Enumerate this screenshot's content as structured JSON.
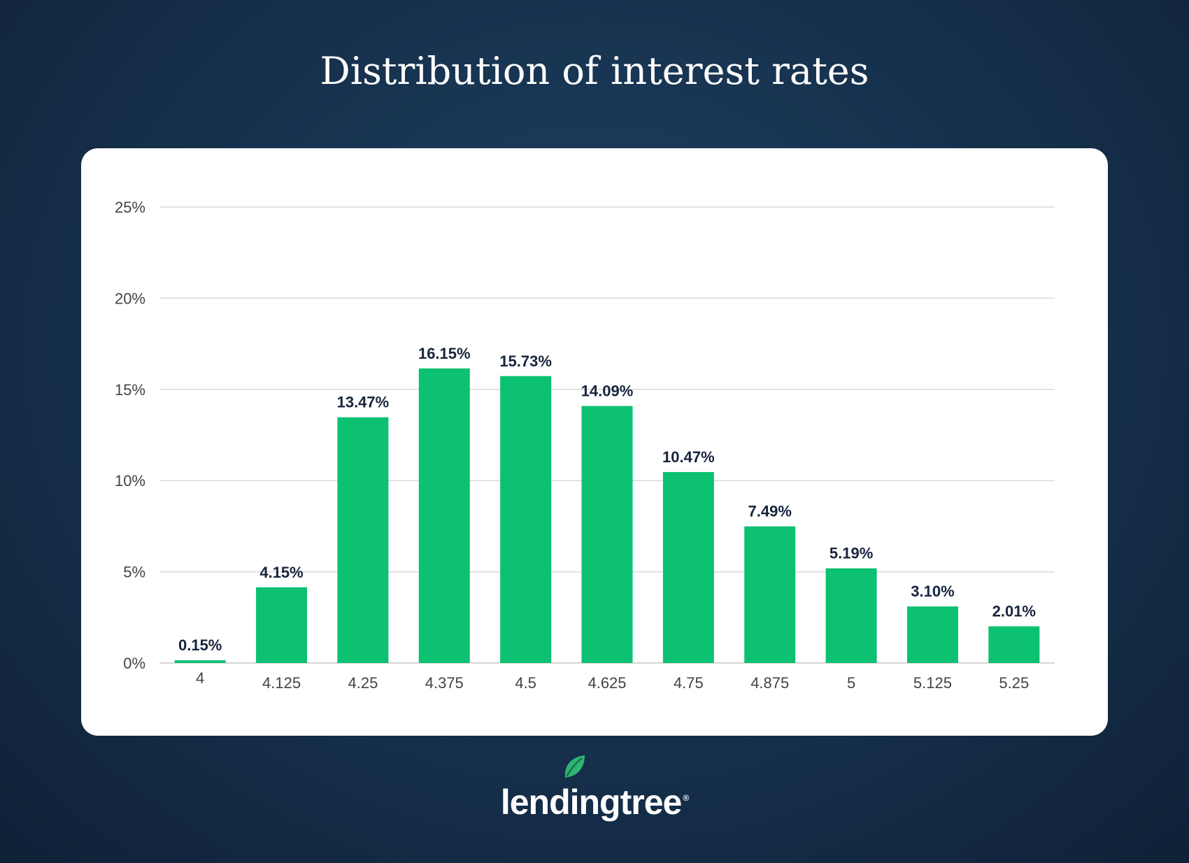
{
  "title": "Distribution of interest rates",
  "brand": {
    "name": "lendingtree",
    "mark": "®",
    "icon": "leaf-icon",
    "accent": "#2bb673"
  },
  "colors": {
    "bar": "#0cc172",
    "grid": "#d9d9d9",
    "label": "#17243d",
    "tick": "#444444"
  },
  "chart_data": {
    "type": "bar",
    "categories": [
      "4",
      "4.125",
      "4.25",
      "4.375",
      "4.5",
      "4.625",
      "4.75",
      "4.875",
      "5",
      "5.125",
      "5.25"
    ],
    "values": [
      0.15,
      4.15,
      13.47,
      16.15,
      15.73,
      14.09,
      10.47,
      7.49,
      5.19,
      3.1,
      2.01
    ],
    "data_labels": [
      "0.15%",
      "4.15%",
      "13.47%",
      "16.15%",
      "15.73%",
      "14.09%",
      "10.47%",
      "7.49%",
      "5.19%",
      "3.10%",
      "2.01%"
    ],
    "ylim": [
      0,
      25
    ],
    "yticks": [
      0,
      5,
      10,
      15,
      20,
      25
    ],
    "ytick_labels": [
      "0%",
      "5%",
      "10%",
      "15%",
      "20%",
      "25%"
    ],
    "grid": true,
    "legend": false
  }
}
